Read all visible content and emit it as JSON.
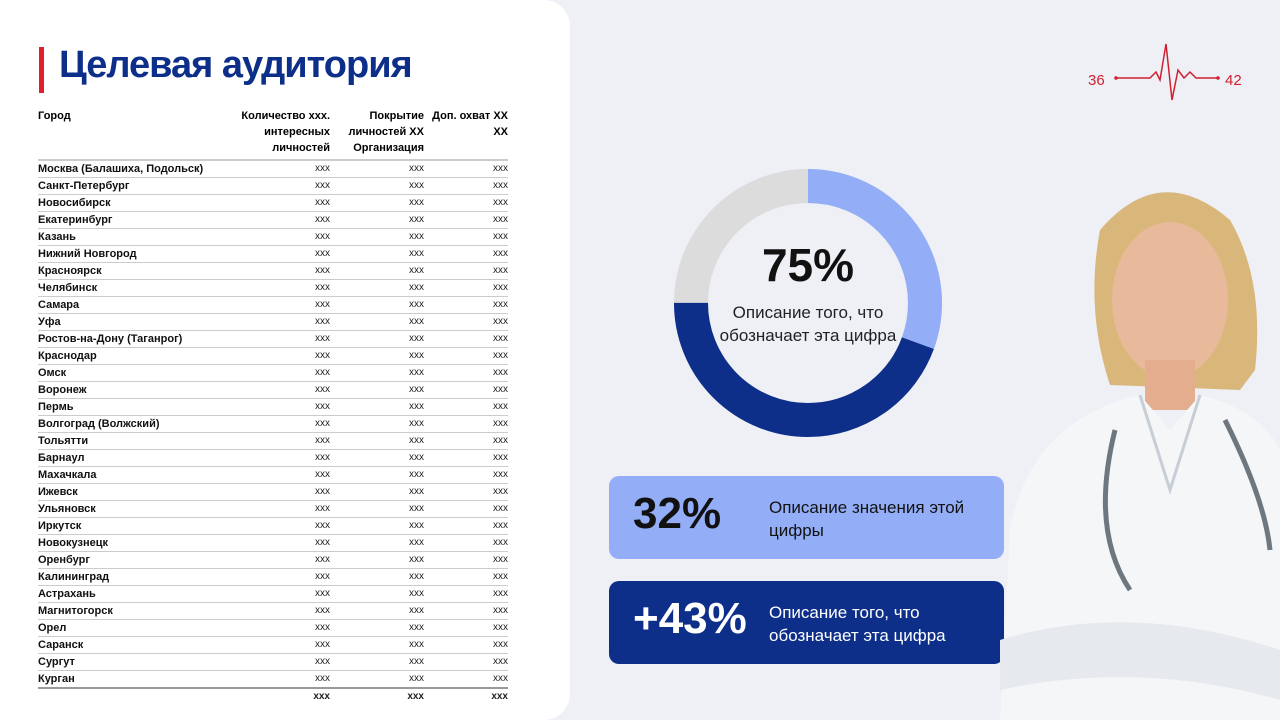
{
  "header": {
    "title": "Целевая аудитория",
    "logo": {
      "left": "36",
      "right": "42"
    }
  },
  "table": {
    "columns": [
      "Город",
      "Количество xxx. интересных личностей",
      "Покрытие личностей XX Организация",
      "Доп. охват XX XX"
    ],
    "rows": [
      [
        "Москва (Балашиха, Подольск)",
        "xxx",
        "xxx",
        "xxx"
      ],
      [
        "Санкт-Петербург",
        "xxx",
        "xxx",
        "xxx"
      ],
      [
        "Новосибирск",
        "xxx",
        "xxx",
        "xxx"
      ],
      [
        "Екатеринбург",
        "xxx",
        "xxx",
        "xxx"
      ],
      [
        "Казань",
        "xxx",
        "xxx",
        "xxx"
      ],
      [
        "Нижний Новгород",
        "xxx",
        "xxx",
        "xxx"
      ],
      [
        "Красноярск",
        "xxx",
        "xxx",
        "xxx"
      ],
      [
        "Челябинск",
        "xxx",
        "xxx",
        "xxx"
      ],
      [
        "Самара",
        "xxx",
        "xxx",
        "xxx"
      ],
      [
        "Уфа",
        "xxx",
        "xxx",
        "xxx"
      ],
      [
        "Ростов-на-Дону (Таганрог)",
        "xxx",
        "xxx",
        "xxx"
      ],
      [
        "Краснодар",
        "xxx",
        "xxx",
        "xxx"
      ],
      [
        "Омск",
        "xxx",
        "xxx",
        "xxx"
      ],
      [
        "Воронеж",
        "xxx",
        "xxx",
        "xxx"
      ],
      [
        "Пермь",
        "xxx",
        "xxx",
        "xxx"
      ],
      [
        "Волгоград (Волжский)",
        "xxx",
        "xxx",
        "xxx"
      ],
      [
        "Тольятти",
        "xxx",
        "xxx",
        "xxx"
      ],
      [
        "Барнаул",
        "xxx",
        "xxx",
        "xxx"
      ],
      [
        "Махачкала",
        "xxx",
        "xxx",
        "xxx"
      ],
      [
        "Ижевск",
        "xxx",
        "xxx",
        "xxx"
      ],
      [
        "Ульяновск",
        "xxx",
        "xxx",
        "xxx"
      ],
      [
        "Иркутск",
        "xxx",
        "xxx",
        "xxx"
      ],
      [
        "Новокузнецк",
        "xxx",
        "xxx",
        "xxx"
      ],
      [
        "Оренбург",
        "xxx",
        "xxx",
        "xxx"
      ],
      [
        "Калининград",
        "xxx",
        "xxx",
        "xxx"
      ],
      [
        "Астрахань",
        "xxx",
        "xxx",
        "xxx"
      ],
      [
        "Магнитогорск",
        "xxx",
        "xxx",
        "xxx"
      ],
      [
        "Орел",
        "xxx",
        "xxx",
        "xxx"
      ],
      [
        "Саранск",
        "xxx",
        "xxx",
        "xxx"
      ],
      [
        "Сургут",
        "xxx",
        "xxx",
        "xxx"
      ],
      [
        "Курган",
        "xxx",
        "xxx",
        "xxx"
      ]
    ],
    "total": [
      "xxx",
      "xxx",
      "xxx"
    ]
  },
  "donut": {
    "value": "75%",
    "description": "Описание того, что обозначает эта цифра"
  },
  "cards": [
    {
      "value": "32%",
      "description": "Описание значения этой цифры"
    },
    {
      "value": "+43%",
      "description": "Описание того, что обозначает эта цифра"
    }
  ]
}
